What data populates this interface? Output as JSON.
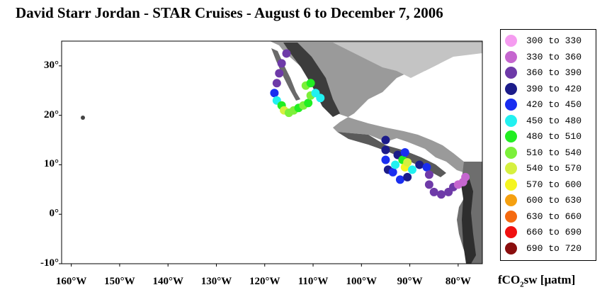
{
  "title": "David Starr Jordan - STAR Cruises - August 6 to December 7, 2006",
  "map": {
    "lon_range": [
      -162,
      -75
    ],
    "lat_range": [
      -10,
      35
    ],
    "y_ticks": [
      {
        "lat": 30,
        "label": "30°"
      },
      {
        "lat": 20,
        "label": "20°"
      },
      {
        "lat": 10,
        "label": "10°"
      },
      {
        "lat": 0,
        "label": "0°"
      },
      {
        "lat": -10,
        "label": "-10°"
      }
    ],
    "x_ticks": [
      {
        "lon": -160,
        "label": "160°W"
      },
      {
        "lon": -150,
        "label": "150°W"
      },
      {
        "lon": -140,
        "label": "140°W"
      },
      {
        "lon": -130,
        "label": "130°W"
      },
      {
        "lon": -120,
        "label": "120°W"
      },
      {
        "lon": -110,
        "label": "110°W"
      },
      {
        "lon": -100,
        "label": "100°W"
      },
      {
        "lon": -90,
        "label": "90°W"
      },
      {
        "lon": -80,
        "label": "80°W"
      }
    ],
    "land_color": "#8c8c8c",
    "ocean_color": "#ffffff"
  },
  "legend": {
    "unit_prefix": "fCO",
    "unit_sub": "2",
    "unit_suffix": "sw [µatm]",
    "items": [
      {
        "label": "300  to  330",
        "color": "#f59cf0"
      },
      {
        "label": "330  to  360",
        "color": "#c566cf"
      },
      {
        "label": "360  to  390",
        "color": "#6e3aa8"
      },
      {
        "label": "390  to  420",
        "color": "#1c1c8a"
      },
      {
        "label": "420  to  450",
        "color": "#1a2ef0"
      },
      {
        "label": "450  to  480",
        "color": "#22f0f0"
      },
      {
        "label": "480  to  510",
        "color": "#22ee22"
      },
      {
        "label": "510  to  540",
        "color": "#7cf03a"
      },
      {
        "label": "540  to  570",
        "color": "#d6f040"
      },
      {
        "label": "570  to  600",
        "color": "#f5f520"
      },
      {
        "label": "600  to  630",
        "color": "#f5a010"
      },
      {
        "label": "630  to  660",
        "color": "#f56a10"
      },
      {
        "label": "660  to  690",
        "color": "#f01010"
      },
      {
        "label": "690  to  720",
        "color": "#8a0e0e"
      }
    ]
  },
  "cruise_track": [
    {
      "lon": -115.5,
      "lat": 32.5,
      "bin": 2
    },
    {
      "lon": -116.5,
      "lat": 30.5,
      "bin": 2
    },
    {
      "lon": -117.0,
      "lat": 28.5,
      "bin": 2
    },
    {
      "lon": -117.5,
      "lat": 26.5,
      "bin": 2
    },
    {
      "lon": -118.0,
      "lat": 24.5,
      "bin": 4
    },
    {
      "lon": -117.5,
      "lat": 23.0,
      "bin": 5
    },
    {
      "lon": -116.5,
      "lat": 22.0,
      "bin": 6
    },
    {
      "lon": -116.0,
      "lat": 21.0,
      "bin": 8
    },
    {
      "lon": -115.0,
      "lat": 20.5,
      "bin": 7
    },
    {
      "lon": -114.0,
      "lat": 21.0,
      "bin": 7
    },
    {
      "lon": -113.0,
      "lat": 21.5,
      "bin": 6
    },
    {
      "lon": -112.0,
      "lat": 22.0,
      "bin": 7
    },
    {
      "lon": -111.0,
      "lat": 22.5,
      "bin": 6
    },
    {
      "lon": -110.5,
      "lat": 24.0,
      "bin": 7
    },
    {
      "lon": -111.5,
      "lat": 26.0,
      "bin": 7
    },
    {
      "lon": -110.5,
      "lat": 26.5,
      "bin": 6
    },
    {
      "lon": -109.5,
      "lat": 24.5,
      "bin": 5
    },
    {
      "lon": -108.5,
      "lat": 23.5,
      "bin": 5
    },
    {
      "lon": -95.0,
      "lat": 15.0,
      "bin": 3
    },
    {
      "lon": -95.0,
      "lat": 13.0,
      "bin": 3
    },
    {
      "lon": -95.0,
      "lat": 11.0,
      "bin": 4
    },
    {
      "lon": -94.5,
      "lat": 9.0,
      "bin": 3
    },
    {
      "lon": -93.5,
      "lat": 8.5,
      "bin": 4
    },
    {
      "lon": -93.0,
      "lat": 10.0,
      "bin": 5
    },
    {
      "lon": -92.5,
      "lat": 12.0,
      "bin": 3
    },
    {
      "lon": -91.5,
      "lat": 11.0,
      "bin": 6
    },
    {
      "lon": -91.0,
      "lat": 9.5,
      "bin": 9
    },
    {
      "lon": -90.5,
      "lat": 10.5,
      "bin": 8
    },
    {
      "lon": -91.0,
      "lat": 12.5,
      "bin": 4
    },
    {
      "lon": -92.0,
      "lat": 7.0,
      "bin": 4
    },
    {
      "lon": -90.5,
      "lat": 7.5,
      "bin": 3
    },
    {
      "lon": -89.5,
      "lat": 9.0,
      "bin": 5
    },
    {
      "lon": -88.0,
      "lat": 10.0,
      "bin": 3
    },
    {
      "lon": -86.5,
      "lat": 9.5,
      "bin": 4
    },
    {
      "lon": -86.0,
      "lat": 8.0,
      "bin": 2
    },
    {
      "lon": -86.0,
      "lat": 6.0,
      "bin": 2
    },
    {
      "lon": -85.0,
      "lat": 4.5,
      "bin": 2
    },
    {
      "lon": -83.5,
      "lat": 4.0,
      "bin": 2
    },
    {
      "lon": -82.0,
      "lat": 4.5,
      "bin": 2
    },
    {
      "lon": -81.0,
      "lat": 5.5,
      "bin": 2
    },
    {
      "lon": -80.0,
      "lat": 6.0,
      "bin": 1
    },
    {
      "lon": -79.0,
      "lat": 6.5,
      "bin": 1
    },
    {
      "lon": -78.5,
      "lat": 7.5,
      "bin": 1
    }
  ]
}
